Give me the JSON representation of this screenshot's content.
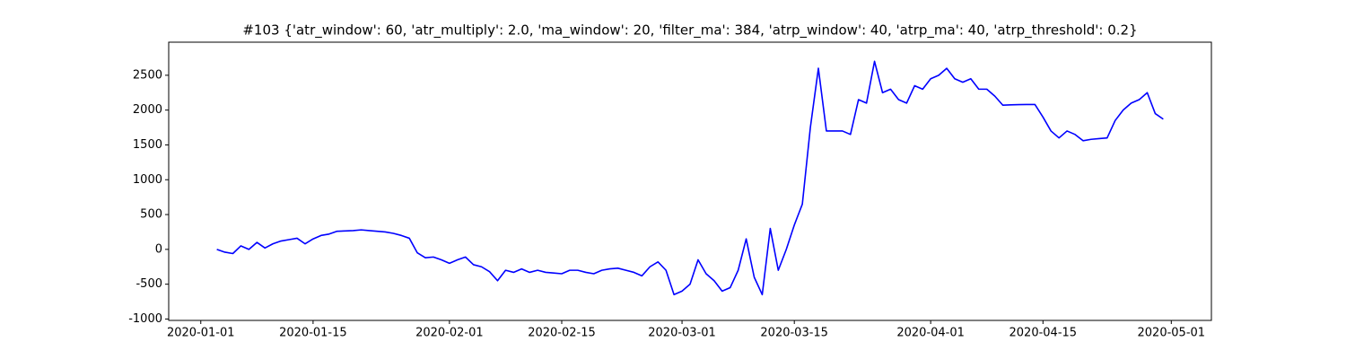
{
  "chart_data": {
    "type": "line",
    "title": "#103 {'atr_window': 60, 'atr_multiply': 2.0, 'ma_window': 20, 'filter_ma': 384, 'atrp_window': 40, 'atrp_ma': 40, 'atrp_threshold': 0.2}",
    "x": [
      "2020-01-03",
      "2020-01-04",
      "2020-01-05",
      "2020-01-06",
      "2020-01-07",
      "2020-01-08",
      "2020-01-09",
      "2020-01-10",
      "2020-01-11",
      "2020-01-12",
      "2020-01-13",
      "2020-01-14",
      "2020-01-15",
      "2020-01-16",
      "2020-01-17",
      "2020-01-18",
      "2020-01-19",
      "2020-01-20",
      "2020-01-21",
      "2020-01-22",
      "2020-01-23",
      "2020-01-24",
      "2020-01-25",
      "2020-01-26",
      "2020-01-27",
      "2020-01-28",
      "2020-01-29",
      "2020-01-30",
      "2020-01-31",
      "2020-02-01",
      "2020-02-02",
      "2020-02-03",
      "2020-02-04",
      "2020-02-05",
      "2020-02-06",
      "2020-02-07",
      "2020-02-08",
      "2020-02-09",
      "2020-02-10",
      "2020-02-11",
      "2020-02-12",
      "2020-02-13",
      "2020-02-14",
      "2020-02-15",
      "2020-02-16",
      "2020-02-17",
      "2020-02-18",
      "2020-02-19",
      "2020-02-20",
      "2020-02-21",
      "2020-02-22",
      "2020-02-23",
      "2020-02-24",
      "2020-02-25",
      "2020-02-26",
      "2020-02-27",
      "2020-02-28",
      "2020-02-29",
      "2020-03-01",
      "2020-03-02",
      "2020-03-03",
      "2020-03-04",
      "2020-03-05",
      "2020-03-06",
      "2020-03-07",
      "2020-03-08",
      "2020-03-09",
      "2020-03-10",
      "2020-03-11",
      "2020-03-12",
      "2020-03-13",
      "2020-03-14",
      "2020-03-15",
      "2020-03-16",
      "2020-03-17",
      "2020-03-18",
      "2020-03-19",
      "2020-03-20",
      "2020-03-21",
      "2020-03-22",
      "2020-03-23",
      "2020-03-24",
      "2020-03-25",
      "2020-03-26",
      "2020-03-27",
      "2020-03-28",
      "2020-03-29",
      "2020-03-30",
      "2020-03-31",
      "2020-04-01",
      "2020-04-02",
      "2020-04-03",
      "2020-04-04",
      "2020-04-05",
      "2020-04-06",
      "2020-04-07",
      "2020-04-08",
      "2020-04-09",
      "2020-04-10",
      "2020-04-11",
      "2020-04-12",
      "2020-04-13",
      "2020-04-14",
      "2020-04-15",
      "2020-04-16",
      "2020-04-17",
      "2020-04-18",
      "2020-04-19",
      "2020-04-20",
      "2020-04-21",
      "2020-04-22",
      "2020-04-23",
      "2020-04-24",
      "2020-04-25",
      "2020-04-26",
      "2020-04-27",
      "2020-04-28",
      "2020-04-29",
      "2020-04-30"
    ],
    "series": [
      {
        "color": "#0000ff",
        "values": [
          0,
          -40,
          -60,
          50,
          0,
          100,
          20,
          80,
          120,
          140,
          160,
          80,
          150,
          200,
          220,
          260,
          265,
          270,
          280,
          270,
          260,
          250,
          230,
          200,
          160,
          -50,
          -120,
          -110,
          -150,
          -200,
          -150,
          -110,
          -220,
          -250,
          -320,
          -450,
          -300,
          -330,
          -280,
          -330,
          -300,
          -330,
          -340,
          -350,
          -300,
          -300,
          -330,
          -350,
          -300,
          -280,
          -270,
          -300,
          -330,
          -380,
          -250,
          -180,
          -300,
          -650,
          -600,
          -500,
          -150,
          -350,
          -450,
          -600,
          -550,
          -300,
          150,
          -400,
          -650,
          300,
          -300,
          0,
          350,
          650,
          1750,
          2600,
          1700,
          1700,
          1700,
          1650,
          2150,
          2100,
          2700,
          2250,
          2300,
          2150,
          2100,
          2350,
          2300,
          2450,
          2500,
          2600,
          2450,
          2400,
          2450,
          2300,
          2300,
          2200,
          2070,
          2075,
          2078,
          2080,
          2080,
          1900,
          1700,
          1600,
          1700,
          1650,
          1560,
          1580,
          1590,
          1600,
          1850,
          2000,
          2100,
          2150,
          2250,
          1950,
          1870
        ]
      }
    ],
    "xlim": [
      "2019-12-28",
      "2020-05-06"
    ],
    "xticks": [
      "2020-01-01",
      "2020-01-15",
      "2020-02-01",
      "2020-02-15",
      "2020-03-01",
      "2020-03-15",
      "2020-04-01",
      "2020-04-15",
      "2020-05-01"
    ],
    "ylim": [
      -1020,
      2975
    ],
    "yticks": [
      -1000,
      -500,
      0,
      500,
      1000,
      1500,
      2000,
      2500
    ],
    "grid": false
  }
}
